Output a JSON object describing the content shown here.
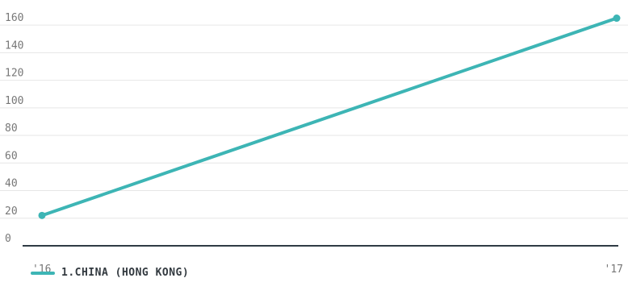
{
  "chart_data": {
    "type": "line",
    "x": [
      "'16",
      "'17"
    ],
    "series": [
      {
        "name": "1.CHINA (HONG KONG)",
        "values": [
          22,
          165
        ],
        "color": "#3db5b5"
      }
    ],
    "yticks": [
      0,
      20,
      40,
      60,
      80,
      100,
      120,
      140,
      160
    ],
    "ylim": [
      0,
      170
    ],
    "grid": true,
    "legend_position": "bottom-left",
    "colors": {
      "grid": "#e6e6e6",
      "baseline": "#2f3b44",
      "tick_text": "#777777"
    }
  }
}
